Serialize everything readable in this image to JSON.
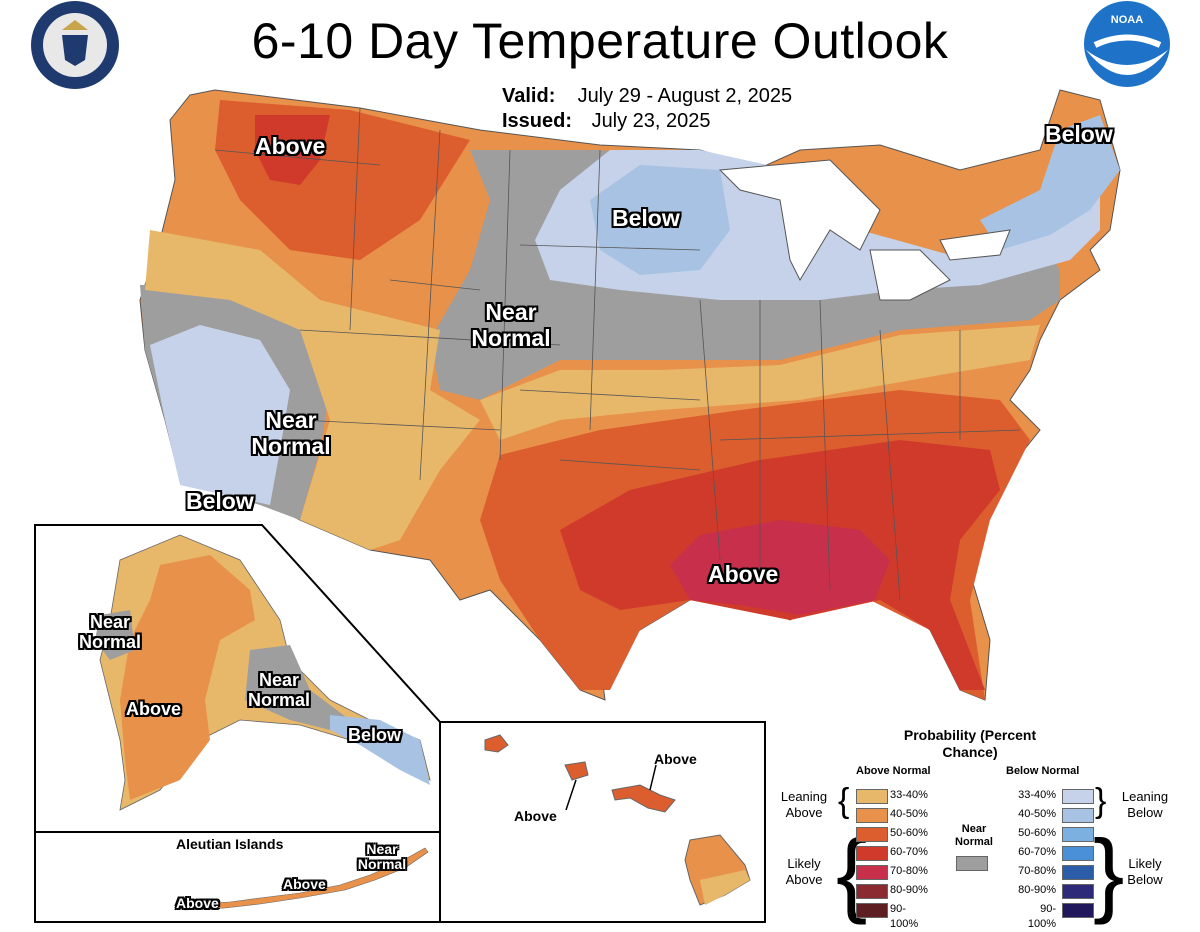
{
  "title": "6-10 Day Temperature Outlook",
  "valid_label": "Valid:",
  "valid_value": "July 29 - August 2, 2025",
  "issued_label": "Issued:",
  "issued_value": "July 23, 2025",
  "logos": {
    "left": "department-of-commerce-seal",
    "right": "noaa-logo",
    "right_text": "NOAA"
  },
  "map_labels": {
    "above_northwest": "Above",
    "below_northeast": "Below",
    "below_upper_midwest": "Below",
    "near_normal_plains": "Near Normal",
    "near_normal_west": "Near Normal",
    "below_california": "Below",
    "above_gulf": "Above"
  },
  "alaska_labels": {
    "near_normal_west": "Near Normal",
    "above": "Above",
    "near_normal_south": "Near Normal",
    "below": "Below"
  },
  "aleutian": {
    "title": "Aleutian Islands",
    "near_normal": "Near Normal",
    "above_1": "Above",
    "above_2": "Above"
  },
  "hawaii": {
    "above_1": "Above",
    "above_2": "Above"
  },
  "legend": {
    "title": "Probability (Percent Chance)",
    "above_header": "Above Normal",
    "below_header": "Below Normal",
    "near_normal": "Near Normal",
    "leaning_above": "Leaning Above",
    "likely_above": "Likely Above",
    "leaning_below": "Leaning Below",
    "likely_below": "Likely Below",
    "above_rows": [
      {
        "label": "33-40%",
        "color": "#e8b86a"
      },
      {
        "label": "40-50%",
        "color": "#e8914a"
      },
      {
        "label": "50-60%",
        "color": "#dc5e2f"
      },
      {
        "label": "60-70%",
        "color": "#cf3a2b"
      },
      {
        "label": "70-80%",
        "color": "#c72f4b"
      },
      {
        "label": "80-90%",
        "color": "#8c2a32"
      },
      {
        "label": "90-100%",
        "color": "#5e1f22"
      }
    ],
    "below_rows": [
      {
        "label": "33-40%",
        "color": "#c5d2ea"
      },
      {
        "label": "40-50%",
        "color": "#a7c2e2"
      },
      {
        "label": "50-60%",
        "color": "#7cb0e0"
      },
      {
        "label": "60-70%",
        "color": "#4a90d8"
      },
      {
        "label": "70-80%",
        "color": "#2a5ca8"
      },
      {
        "label": "80-90%",
        "color": "#2e2a7a"
      },
      {
        "label": "90-100%",
        "color": "#20185a"
      }
    ],
    "near_normal_color": "#9e9e9e"
  }
}
